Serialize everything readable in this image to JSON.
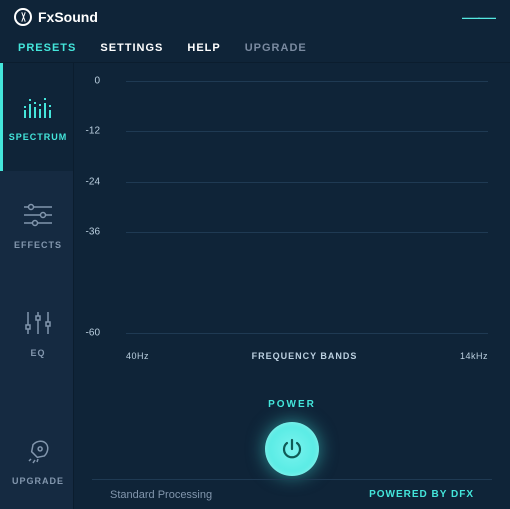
{
  "app": {
    "name": "FxSound"
  },
  "menu": {
    "items": [
      "PRESETS",
      "SETTINGS",
      "HELP",
      "UPGRADE"
    ],
    "active_index": 0
  },
  "sidebar": {
    "items": [
      {
        "label": "SPECTRUM",
        "active": true
      },
      {
        "label": "EFFECTS",
        "active": false
      },
      {
        "label": "EQ",
        "active": false
      },
      {
        "label": "UPGRADE",
        "active": false
      }
    ]
  },
  "chart": {
    "type": "spectrum",
    "y_ticks": [
      0,
      -12,
      -24,
      -36,
      -60
    ],
    "ylim": [
      -60,
      0
    ],
    "x_min_label": "40Hz",
    "x_max_label": "14kHz",
    "x_label": "FREQUENCY BANDS",
    "grid_color": "#1f3a53",
    "background_color": "#0f2438",
    "label_color": "#bcd0e0",
    "label_fontsize": 10
  },
  "power": {
    "label": "POWER",
    "on": true,
    "button_color": "#45e7df",
    "glow_color": "rgba(68,230,219,0.55)"
  },
  "footer": {
    "status": "Standard Processing",
    "powered_by": "POWERED BY DFX"
  },
  "colors": {
    "accent": "#44e6db",
    "panel_bg": "#0f2438",
    "sidebar_bg": "#152a41",
    "muted_text": "#8296ad"
  }
}
